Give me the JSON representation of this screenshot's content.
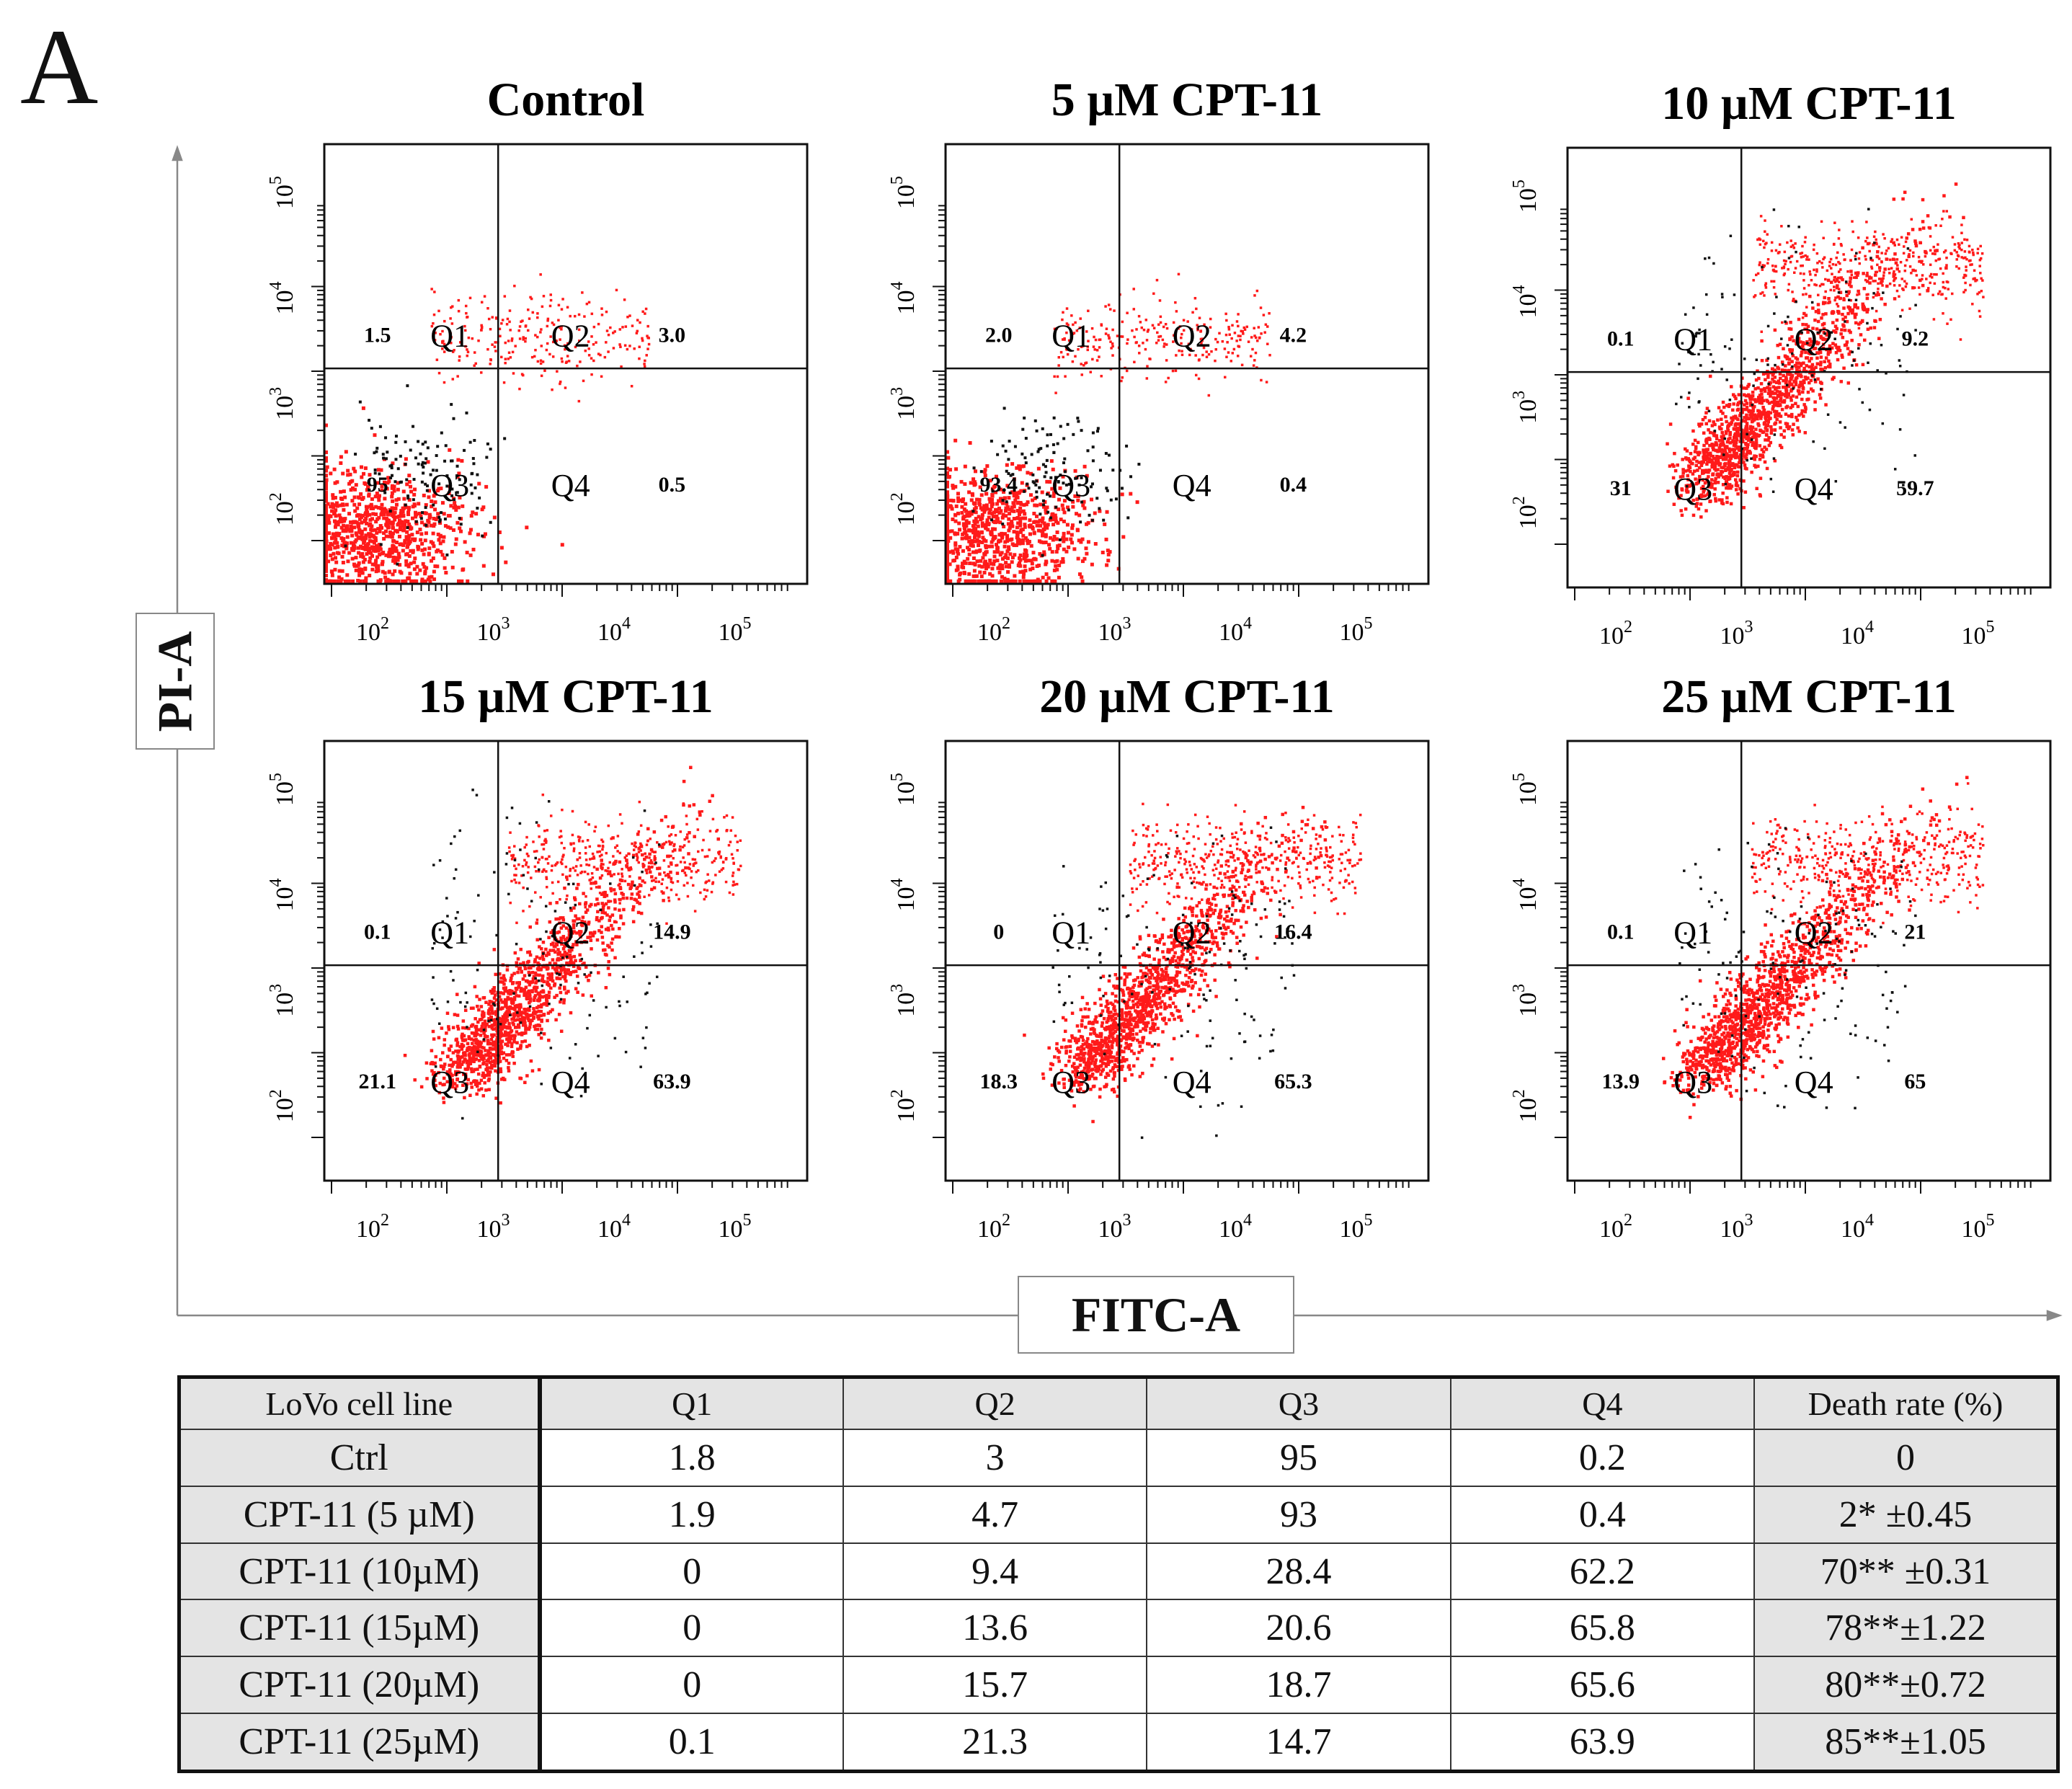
{
  "panel_label": "A",
  "y_axis_label": "PI-A",
  "x_axis_label": "FITC-A",
  "quadrant_names": [
    "Q1",
    "Q2",
    "Q3",
    "Q4"
  ],
  "axis_tick_labels": [
    "10",
    "10",
    "10",
    "10"
  ],
  "axis_tick_exponents": [
    "2",
    "3",
    "4",
    "5"
  ],
  "colors": {
    "events": "#ff1a1a",
    "events_dark": "#111111",
    "gate_line": "#111111",
    "shade": "#e4e4e4"
  },
  "plots": [
    {
      "title": "Control",
      "q1": "1.5",
      "q2": "3.0",
      "q3": "95",
      "q4": "0.5"
    },
    {
      "title": "5 µM CPT-11",
      "q1": "2.0",
      "q2": "4.2",
      "q3": "93.4",
      "q4": "0.4"
    },
    {
      "title": "10 µM CPT-11",
      "q1": "0.1",
      "q2": "9.2",
      "q3": "31",
      "q4": "59.7"
    },
    {
      "title": "15 µM CPT-11",
      "q1": "0.1",
      "q2": "14.9",
      "q3": "21.1",
      "q4": "63.9"
    },
    {
      "title": "20 µM CPT-11",
      "q1": "0",
      "q2": "16.4",
      "q3": "18.3",
      "q4": "65.3"
    },
    {
      "title": "25 µM CPT-11",
      "q1": "0.1",
      "q2": "21",
      "q3": "13.9",
      "q4": "65"
    }
  ],
  "table": {
    "headers": [
      "LoVo cell line",
      "Q1",
      "Q2",
      "Q3",
      "Q4",
      "Death rate (%)"
    ],
    "rows": [
      [
        "Ctrl",
        "1.8",
        "3",
        "95",
        "0.2",
        "0"
      ],
      [
        "CPT-11 (5 µM)",
        "1.9",
        "4.7",
        "93",
        "0.4",
        "2* ±0.45"
      ],
      [
        "CPT-11 (10µM)",
        "0",
        "9.4",
        "28.4",
        "62.2",
        "70** ±0.31"
      ],
      [
        "CPT-11 (15µM)",
        "0",
        "13.6",
        "20.6",
        "65.8",
        "78**±1.22"
      ],
      [
        "CPT-11 (20µM)",
        "0",
        "15.7",
        "18.7",
        "65.6",
        "80**±0.72"
      ],
      [
        "CPT-11 (25µM)",
        "0.1",
        "21.3",
        "14.7",
        "63.9",
        "85**±1.05"
      ]
    ]
  }
}
